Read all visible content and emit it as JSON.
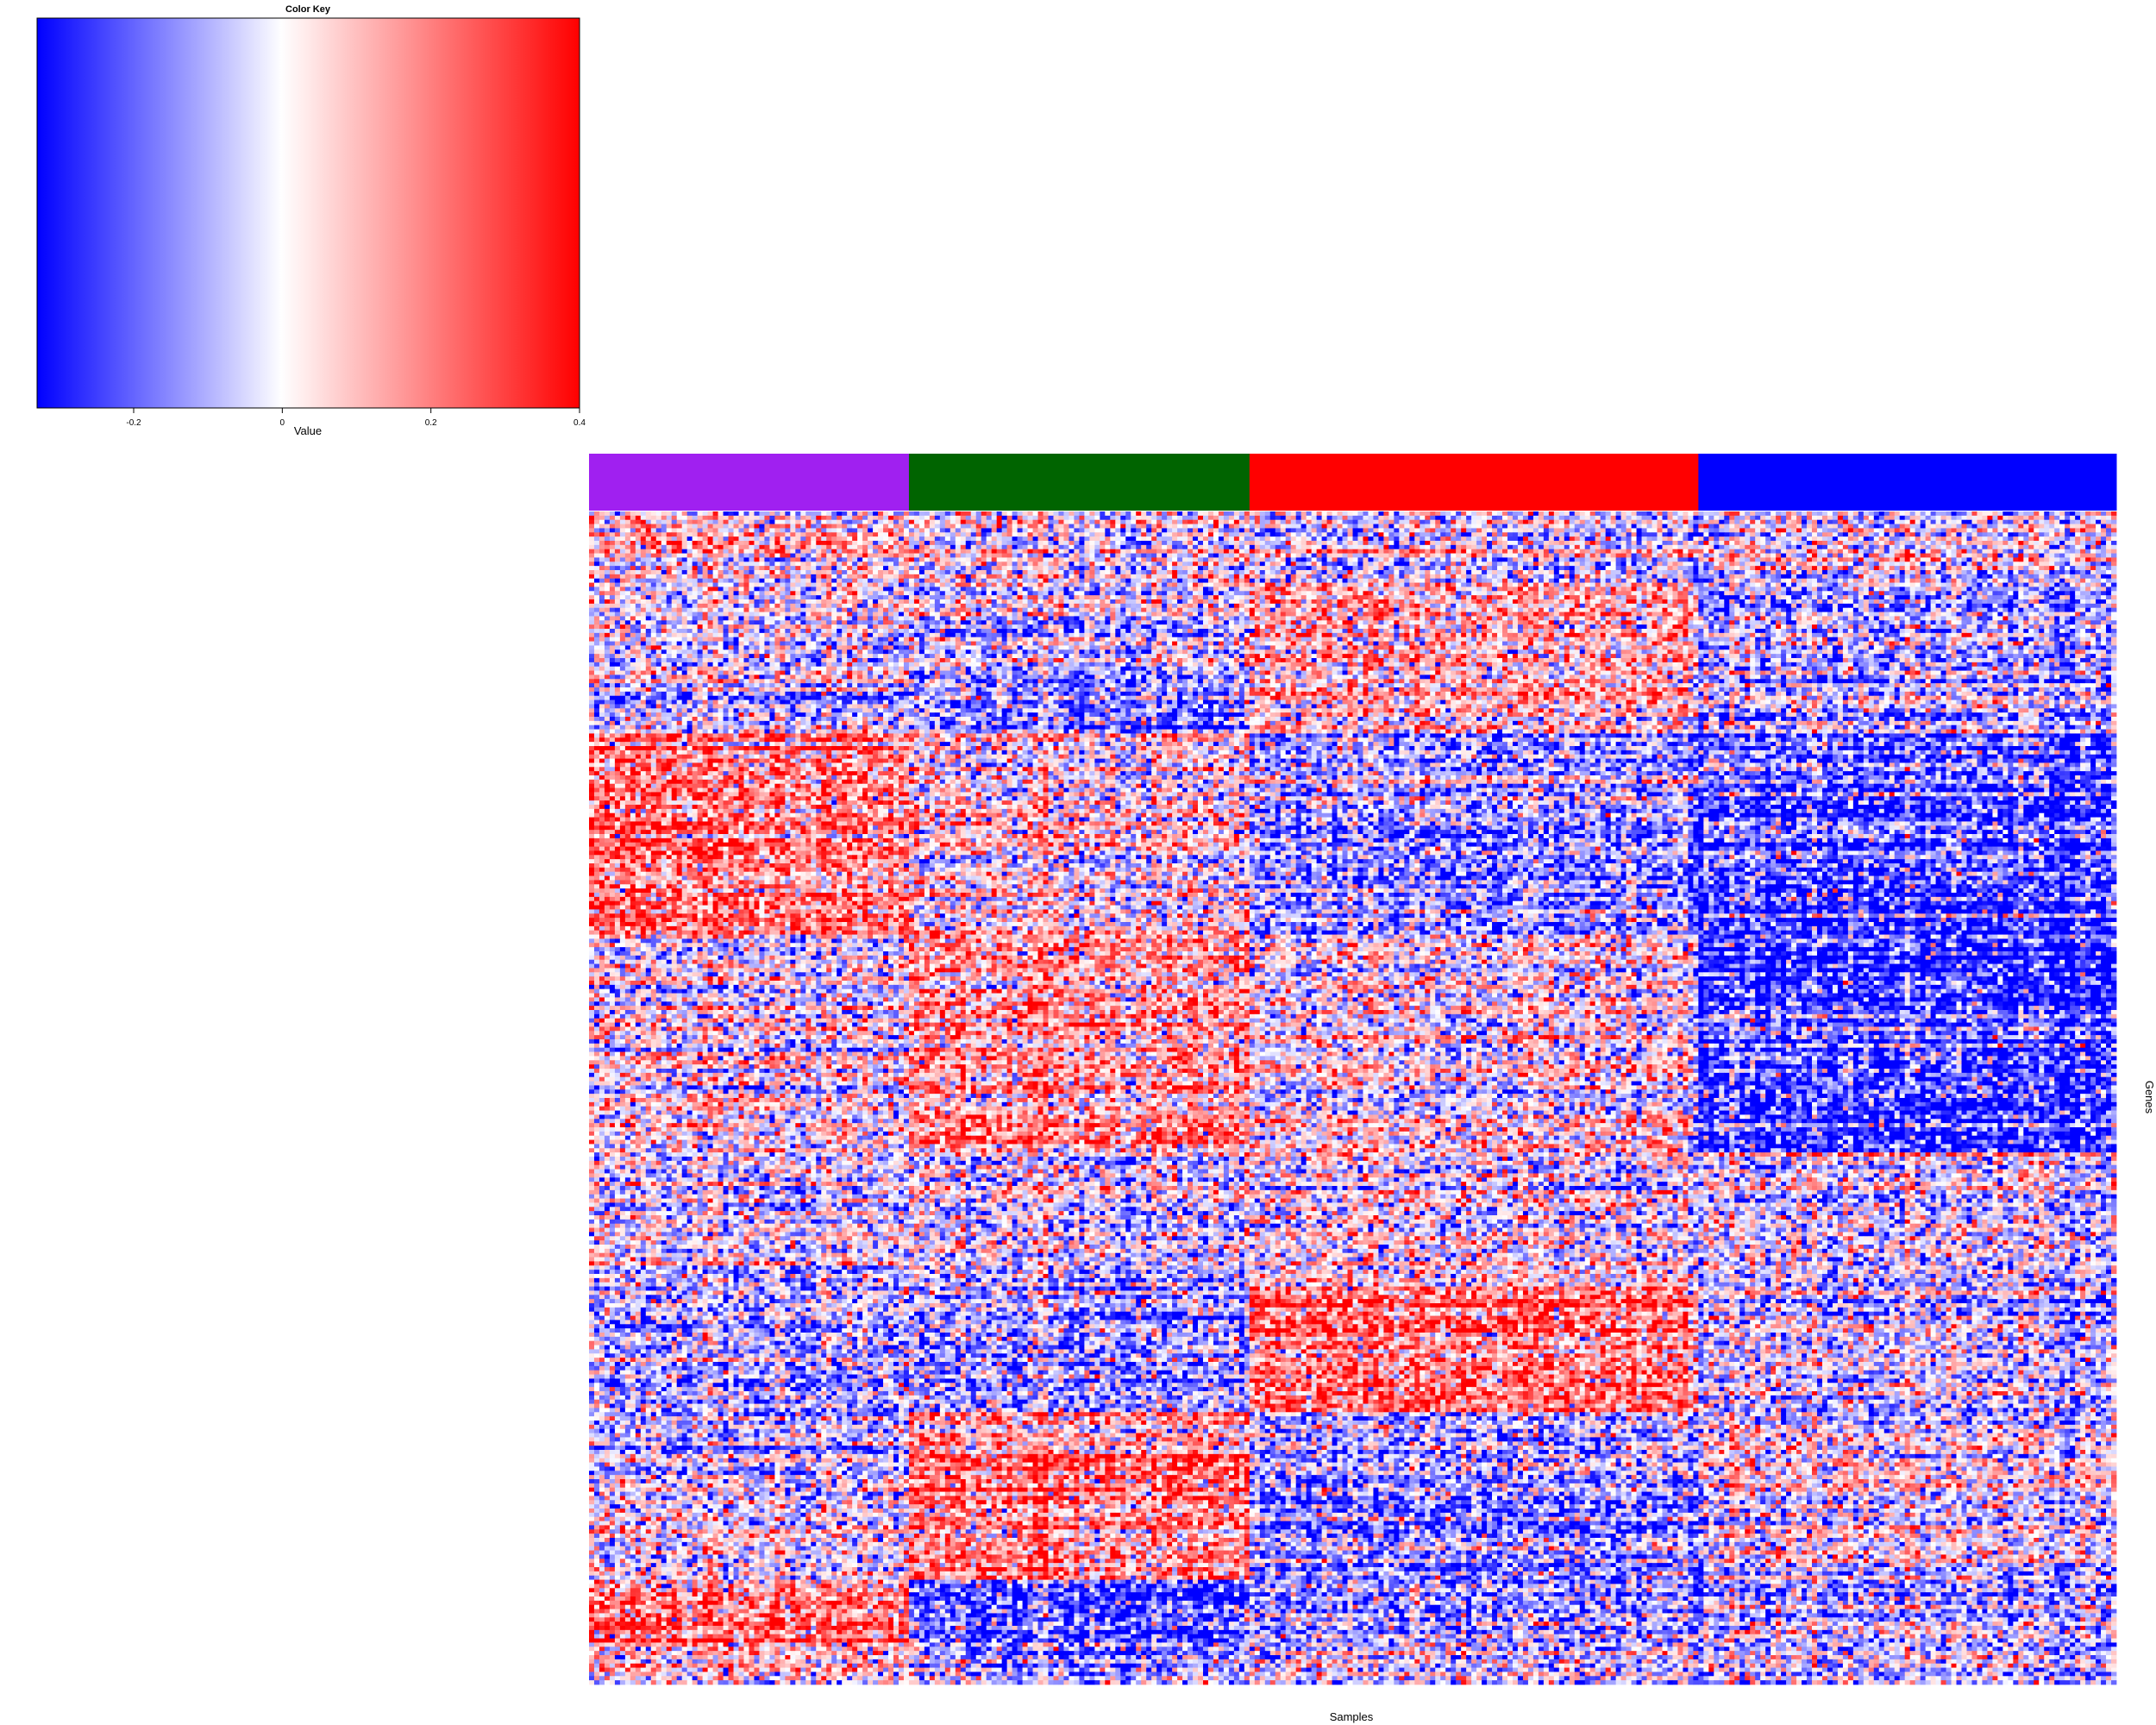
{
  "color_key": {
    "title": "Color Key",
    "xlabel": "Value",
    "ticks": [
      -0.2,
      0,
      0.2,
      0.4
    ],
    "tick_labels": [
      "-0.2",
      "0",
      "0.2",
      "0.4"
    ],
    "range": [
      -0.33,
      0.4
    ],
    "colors": {
      "low": "#0000ff",
      "mid": "#ffffff",
      "high": "#ff0000"
    }
  },
  "chart_data": {
    "type": "heatmap",
    "xlabel": "Samples",
    "ylabel": "Genes",
    "color_scale": {
      "min": -0.33,
      "max": 0.4,
      "low": "#0000ff",
      "mid": "#ffffff",
      "high": "#ff0000"
    },
    "sample_groups": [
      {
        "color": "#a020f0",
        "n_samples": 62
      },
      {
        "color": "#006400",
        "n_samples": 66
      },
      {
        "color": "#ff0000",
        "n_samples": 87
      },
      {
        "color": "#0000ff",
        "n_samples": 81
      }
    ],
    "n_genes": 280,
    "gene_blocks": [
      {
        "rows": 18,
        "group_means": [
          0.02,
          0.0,
          -0.01,
          0.0
        ]
      },
      {
        "rows": 35,
        "group_means": [
          -0.05,
          -0.08,
          0.1,
          -0.06
        ]
      },
      {
        "rows": 48,
        "group_means": [
          0.18,
          0.05,
          -0.15,
          -0.2
        ]
      },
      {
        "rows": 52,
        "group_means": [
          0.0,
          0.15,
          0.0,
          -0.25
        ]
      },
      {
        "rows": 32,
        "group_means": [
          -0.05,
          -0.05,
          0.0,
          -0.02
        ]
      },
      {
        "rows": 30,
        "group_means": [
          -0.1,
          -0.1,
          0.2,
          -0.05
        ]
      },
      {
        "rows": 40,
        "group_means": [
          -0.05,
          0.2,
          -0.1,
          0.0
        ]
      },
      {
        "rows": 15,
        "group_means": [
          0.2,
          -0.2,
          -0.15,
          -0.05
        ]
      },
      {
        "rows": 10,
        "group_means": [
          0.05,
          -0.05,
          -0.05,
          -0.05
        ]
      }
    ]
  }
}
